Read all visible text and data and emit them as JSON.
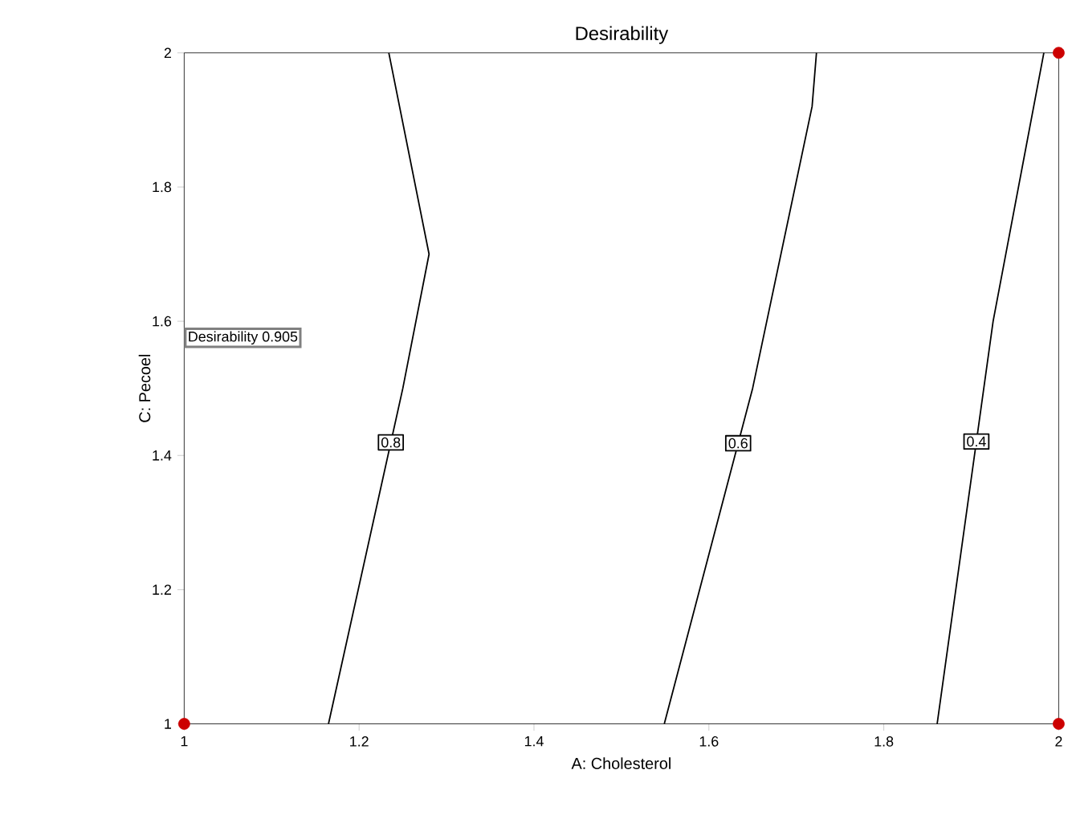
{
  "chart_data": {
    "type": "line",
    "title": "Desirability",
    "xlabel": "A: Cholesterol",
    "ylabel": "C: Pecoel",
    "xlim": [
      1,
      2
    ],
    "ylim": [
      1,
      2
    ],
    "xticks": [
      1,
      1.2,
      1.4,
      1.6,
      1.8,
      2
    ],
    "yticks": [
      1,
      1.2,
      1.4,
      1.6,
      1.8,
      2
    ],
    "grid": false,
    "marker": "none",
    "line_style": "solid",
    "series": [
      {
        "name": "0.8",
        "color": "#000000",
        "x": [
          1.165,
          1.25,
          1.28,
          1.234
        ],
        "values": [
          1,
          1.5,
          1.7,
          2
        ]
      },
      {
        "name": "0.6",
        "color": "#000000",
        "x": [
          1.549,
          1.65,
          1.718,
          1.723
        ],
        "values": [
          1,
          1.5,
          1.92,
          2
        ]
      },
      {
        "name": "0.4",
        "color": "#000000",
        "x": [
          1.861,
          1.925,
          1.983
        ],
        "values": [
          1,
          1.6,
          2
        ]
      },
      {
        "type": "scatter",
        "marker": "circle",
        "color": "#cc0000",
        "x": [
          1,
          2,
          2
        ],
        "values": [
          1,
          1,
          2
        ]
      }
    ],
    "annotations": [
      "Desirability 0.905"
    ]
  }
}
